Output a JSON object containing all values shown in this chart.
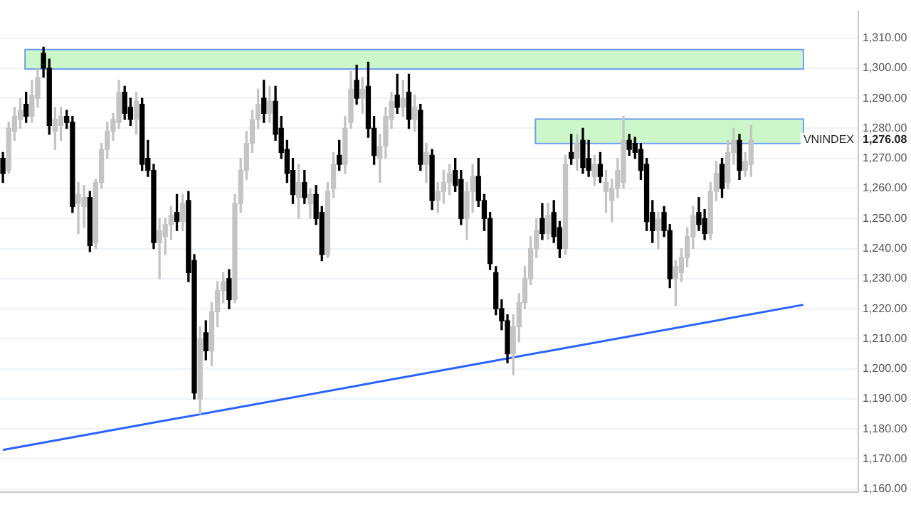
{
  "chart_data": {
    "type": "candlestick",
    "categories": [
      null,
      null,
      null,
      null,
      null,
      null,
      null,
      null,
      null,
      null,
      null,
      null,
      null,
      null,
      null,
      null,
      null,
      null,
      null,
      null,
      null,
      null,
      null,
      null,
      null,
      null,
      null,
      null,
      null,
      null,
      null,
      null,
      null,
      null,
      null,
      null,
      null,
      null,
      null,
      null,
      null,
      null,
      null,
      null,
      null,
      null,
      null,
      null,
      null,
      null,
      null,
      null,
      null,
      null,
      null,
      null,
      null,
      null,
      null,
      null,
      null,
      null,
      null,
      null,
      null,
      null,
      null,
      null,
      null,
      null,
      null,
      null,
      null,
      null,
      null,
      null,
      null,
      null,
      null,
      null,
      null,
      null,
      null,
      null,
      null,
      null,
      null,
      null,
      null,
      null,
      null,
      null,
      null,
      null,
      null,
      null,
      null,
      null,
      null,
      null,
      null,
      null,
      null,
      null,
      null,
      null,
      null,
      null,
      null,
      null,
      null,
      null,
      null,
      null,
      null,
      null,
      null,
      null,
      null,
      null,
      null,
      null,
      null,
      null,
      null,
      null,
      null,
      null,
      null,
      null,
      null,
      null,
      null,
      null,
      null,
      null,
      null,
      null,
      null,
      null,
      null,
      null,
      null,
      null,
      null,
      null,
      null,
      null
    ],
    "ohlc": [
      [
        1270,
        1272,
        1262,
        1265
      ],
      [
        1266,
        1282,
        1265,
        1280
      ],
      [
        1279,
        1287,
        1276,
        1284
      ],
      [
        1283,
        1290,
        1280,
        1286
      ],
      [
        1288,
        1292,
        1282,
        1284
      ],
      [
        1284,
        1296,
        1282,
        1291
      ],
      [
        1290,
        1300,
        1287,
        1297
      ],
      [
        1305,
        1307,
        1297,
        1300
      ],
      [
        1300,
        1303,
        1278,
        1281
      ],
      [
        1279,
        1287,
        1273,
        1283
      ],
      [
        1281,
        1287,
        1276,
        1284
      ],
      [
        1284,
        1286,
        1280,
        1282
      ],
      [
        1282,
        1284,
        1252,
        1254
      ],
      [
        1255,
        1262,
        1245,
        1258
      ],
      [
        1254,
        1261,
        1247,
        1257
      ],
      [
        1257,
        1259,
        1239,
        1241
      ],
      [
        1242,
        1263,
        1240,
        1262
      ],
      [
        1262,
        1275,
        1260,
        1273
      ],
      [
        1273,
        1282,
        1270,
        1279
      ],
      [
        1279,
        1285,
        1276,
        1283
      ],
      [
        1282,
        1296,
        1280,
        1292
      ],
      [
        1292,
        1294,
        1283,
        1285
      ],
      [
        1287,
        1290,
        1281,
        1283
      ],
      [
        1283,
        1292,
        1278,
        1289
      ],
      [
        1288,
        1290,
        1266,
        1268
      ],
      [
        1270,
        1276,
        1264,
        1266
      ],
      [
        1266,
        1268,
        1240,
        1242
      ],
      [
        1242,
        1250,
        1230,
        1246
      ],
      [
        1244,
        1250,
        1238,
        1248
      ],
      [
        1248,
        1254,
        1243,
        1251
      ],
      [
        1252,
        1258,
        1246,
        1249
      ],
      [
        1249,
        1258,
        1246,
        1255
      ],
      [
        1256,
        1259,
        1229,
        1232
      ],
      [
        1236,
        1238,
        1190,
        1192
      ],
      [
        1190,
        1214,
        1185,
        1210
      ],
      [
        1212,
        1216,
        1203,
        1206
      ],
      [
        1206,
        1222,
        1201,
        1219
      ],
      [
        1219,
        1229,
        1214,
        1226
      ],
      [
        1226,
        1232,
        1222,
        1229
      ],
      [
        1230,
        1233,
        1220,
        1223
      ],
      [
        1223,
        1258,
        1222,
        1255
      ],
      [
        1255,
        1270,
        1252,
        1266
      ],
      [
        1266,
        1279,
        1263,
        1275
      ],
      [
        1275,
        1286,
        1272,
        1283
      ],
      [
        1283,
        1293,
        1280,
        1288
      ],
      [
        1290,
        1296,
        1282,
        1285
      ],
      [
        1285,
        1294,
        1282,
        1289
      ],
      [
        1289,
        1294,
        1276,
        1278
      ],
      [
        1280,
        1284,
        1270,
        1272
      ],
      [
        1273,
        1276,
        1262,
        1265
      ],
      [
        1266,
        1270,
        1255,
        1258
      ],
      [
        1257,
        1268,
        1250,
        1262
      ],
      [
        1262,
        1266,
        1255,
        1257
      ],
      [
        1255,
        1260,
        1250,
        1258
      ],
      [
        1258,
        1261,
        1248,
        1250
      ],
      [
        1252,
        1254,
        1236,
        1238
      ],
      [
        1238,
        1262,
        1237,
        1259
      ],
      [
        1260,
        1272,
        1257,
        1268
      ],
      [
        1271,
        1276,
        1266,
        1268
      ],
      [
        1268,
        1284,
        1265,
        1280
      ],
      [
        1282,
        1299,
        1280,
        1293
      ],
      [
        1296,
        1301,
        1288,
        1290
      ],
      [
        1290,
        1297,
        1285,
        1293
      ],
      [
        1294,
        1302,
        1277,
        1280
      ],
      [
        1280,
        1284,
        1268,
        1271
      ],
      [
        1270,
        1278,
        1262,
        1274
      ],
      [
        1274,
        1287,
        1270,
        1284
      ],
      [
        1283,
        1292,
        1280,
        1289
      ],
      [
        1291,
        1298,
        1285,
        1287
      ],
      [
        1287,
        1296,
        1284,
        1290
      ],
      [
        1292,
        1298,
        1280,
        1283
      ],
      [
        1283,
        1291,
        1279,
        1287
      ],
      [
        1286,
        1288,
        1266,
        1268
      ],
      [
        1268,
        1275,
        1262,
        1272
      ],
      [
        1271,
        1273,
        1253,
        1256
      ],
      [
        1256,
        1262,
        1252,
        1259
      ],
      [
        1259,
        1266,
        1255,
        1262
      ],
      [
        1262,
        1268,
        1258,
        1265
      ],
      [
        1266,
        1270,
        1259,
        1261
      ],
      [
        1263,
        1266,
        1248,
        1250
      ],
      [
        1250,
        1262,
        1243,
        1259
      ],
      [
        1259,
        1268,
        1252,
        1264
      ],
      [
        1264,
        1270,
        1254,
        1256
      ],
      [
        1256,
        1258,
        1246,
        1250
      ],
      [
        1250,
        1252,
        1233,
        1235
      ],
      [
        1232,
        1234,
        1218,
        1220
      ],
      [
        1220,
        1223,
        1213,
        1216
      ],
      [
        1216,
        1218,
        1202,
        1205
      ],
      [
        1205,
        1218,
        1198,
        1214
      ],
      [
        1214,
        1225,
        1209,
        1222
      ],
      [
        1222,
        1234,
        1220,
        1230
      ],
      [
        1230,
        1244,
        1228,
        1240
      ],
      [
        1240,
        1250,
        1237,
        1246
      ],
      [
        1250,
        1255,
        1243,
        1245
      ],
      [
        1245,
        1255,
        1243,
        1251
      ],
      [
        1252,
        1256,
        1242,
        1244
      ],
      [
        1247,
        1249,
        1237,
        1240
      ],
      [
        1240,
        1271,
        1238,
        1268
      ],
      [
        1272,
        1278,
        1268,
        1270
      ],
      [
        1270,
        1278,
        1266,
        1275
      ],
      [
        1276,
        1280,
        1265,
        1267
      ],
      [
        1270,
        1276,
        1264,
        1266
      ],
      [
        1264,
        1271,
        1261,
        1268
      ],
      [
        1268,
        1272,
        1262,
        1264
      ],
      [
        1259,
        1266,
        1252,
        1262
      ],
      [
        1256,
        1263,
        1249,
        1260
      ],
      [
        1260,
        1270,
        1257,
        1266
      ],
      [
        1262,
        1284,
        1260,
        1276
      ],
      [
        1276,
        1278,
        1271,
        1273
      ],
      [
        1275,
        1277,
        1270,
        1272
      ],
      [
        1273,
        1275,
        1263,
        1266
      ],
      [
        1268,
        1270,
        1246,
        1249
      ],
      [
        1252,
        1256,
        1242,
        1246
      ],
      [
        1246,
        1252,
        1240,
        1250
      ],
      [
        1252,
        1254,
        1244,
        1246
      ],
      [
        1246,
        1248,
        1227,
        1230
      ],
      [
        1230,
        1236,
        1221,
        1234
      ],
      [
        1232,
        1240,
        1229,
        1237
      ],
      [
        1237,
        1247,
        1234,
        1244
      ],
      [
        1244,
        1254,
        1240,
        1251
      ],
      [
        1252,
        1257,
        1246,
        1248
      ],
      [
        1250,
        1253,
        1243,
        1245
      ],
      [
        1245,
        1262,
        1243,
        1259
      ],
      [
        1259,
        1269,
        1256,
        1265
      ],
      [
        1268,
        1270,
        1257,
        1260
      ],
      [
        1262,
        1276,
        1260,
        1272
      ],
      [
        1272,
        1280,
        1268,
        1276
      ],
      [
        1276,
        1278,
        1263,
        1266
      ],
      [
        1266,
        1272,
        1264,
        1269
      ],
      [
        1268,
        1281,
        1264,
        1276.08
      ],
      null,
      null,
      null,
      null,
      null,
      null,
      null,
      null,
      null,
      null,
      null,
      null,
      null,
      null,
      null,
      null,
      null,
      null
    ],
    "colors": [
      "#000000",
      "#c4c4c4",
      "#c4c4c4",
      "#c4c4c4",
      "#000000",
      "#c4c4c4",
      "#c4c4c4",
      "#000000",
      "#000000",
      "#c4c4c4",
      "#c4c4c4",
      "#000000",
      "#000000",
      "#c4c4c4",
      "#c4c4c4",
      "#000000",
      "#c4c4c4",
      "#c4c4c4",
      "#c4c4c4",
      "#c4c4c4",
      "#c4c4c4",
      "#000000",
      "#000000",
      "#c4c4c4",
      "#000000",
      "#000000",
      "#000000",
      "#c4c4c4",
      "#c4c4c4",
      "#c4c4c4",
      "#000000",
      "#c4c4c4",
      "#000000",
      "#000000",
      "#c4c4c4",
      "#000000",
      "#c4c4c4",
      "#c4c4c4",
      "#c4c4c4",
      "#000000",
      "#c4c4c4",
      "#c4c4c4",
      "#c4c4c4",
      "#c4c4c4",
      "#c4c4c4",
      "#000000",
      "#c4c4c4",
      "#000000",
      "#000000",
      "#000000",
      "#000000",
      "#c4c4c4",
      "#000000",
      "#c4c4c4",
      "#000000",
      "#000000",
      "#c4c4c4",
      "#c4c4c4",
      "#000000",
      "#c4c4c4",
      "#c4c4c4",
      "#000000",
      "#c4c4c4",
      "#000000",
      "#000000",
      "#c4c4c4",
      "#c4c4c4",
      "#c4c4c4",
      "#000000",
      "#c4c4c4",
      "#000000",
      "#c4c4c4",
      "#000000",
      "#c4c4c4",
      "#000000",
      "#c4c4c4",
      "#c4c4c4",
      "#c4c4c4",
      "#000000",
      "#000000",
      "#c4c4c4",
      "#c4c4c4",
      "#000000",
      "#000000",
      "#000000",
      "#000000",
      "#000000",
      "#000000",
      "#c4c4c4",
      "#c4c4c4",
      "#c4c4c4",
      "#c4c4c4",
      "#c4c4c4",
      "#000000",
      "#c4c4c4",
      "#000000",
      "#000000",
      "#c4c4c4",
      "#000000",
      "#c4c4c4",
      "#000000",
      "#000000",
      "#c4c4c4",
      "#000000",
      "#c4c4c4",
      "#c4c4c4",
      "#c4c4c4",
      "#c4c4c4",
      "#000000",
      "#000000",
      "#000000",
      "#000000",
      "#000000",
      "#c4c4c4",
      "#000000",
      "#000000",
      "#c4c4c4",
      "#c4c4c4",
      "#c4c4c4",
      "#c4c4c4",
      "#000000",
      "#000000",
      "#c4c4c4",
      "#c4c4c4",
      "#000000",
      "#c4c4c4",
      "#c4c4c4",
      "#000000",
      "#c4c4c4",
      "#c4c4c4",
      null,
      null,
      null,
      null,
      null,
      null,
      null,
      null,
      null,
      null,
      null,
      null,
      null,
      null,
      null,
      null,
      null,
      null
    ],
    "series": [
      {
        "type": "line",
        "color": "#2962ff",
        "values": [
          1173.0,
          null,
          null,
          null,
          null,
          null,
          null,
          null,
          null,
          null,
          null,
          null,
          null,
          null,
          null,
          null,
          null,
          null,
          null,
          null,
          null,
          null,
          null,
          null,
          null,
          null,
          null,
          null,
          null,
          null,
          null,
          null,
          null,
          null,
          null,
          null,
          null,
          null,
          null,
          null,
          null,
          null,
          null,
          null,
          null,
          null,
          null,
          null,
          null,
          null,
          null,
          null,
          null,
          null,
          null,
          null,
          null,
          null,
          null,
          null,
          null,
          null,
          null,
          null,
          null,
          null,
          null,
          null,
          null,
          null,
          null,
          null,
          null,
          null,
          null,
          null,
          null,
          null,
          null,
          null,
          null,
          null,
          null,
          null,
          null,
          null,
          null,
          null,
          null,
          null,
          null,
          null,
          null,
          null,
          null,
          null,
          null,
          null,
          null,
          null,
          null,
          null,
          null,
          null,
          null,
          null,
          null,
          null,
          null,
          null,
          null,
          null,
          null,
          null,
          null,
          null,
          null,
          null,
          null,
          null,
          null,
          null,
          null,
          null,
          null,
          null,
          null,
          null,
          null,
          null,
          null,
          null,
          null,
          null,
          null,
          null,
          null,
          null,
          1221.3,
          null,
          null,
          null,
          null,
          null,
          null,
          null,
          null,
          null
        ]
      }
    ],
    "bands": [
      {
        "axis": "y",
        "from": 1300,
        "to": 1306.4,
        "color": "#ccf7c9"
      },
      {
        "axis": "y",
        "from": 1275.2,
        "to": 1283.3,
        "color": "#ccf7c9"
      }
    ],
    "annotations": [
      "VNINDEX",
      "1,276.08"
    ],
    "ylim": [
      1159,
      1319
    ],
    "yticks": [
      {
        "value": 1160,
        "label": "1,160.00"
      },
      {
        "value": 1170,
        "label": "1,170.00"
      },
      {
        "value": 1180,
        "label": "1,180.00"
      },
      {
        "value": 1190,
        "label": "1,190.00"
      },
      {
        "value": 1200,
        "label": "1,200.00"
      },
      {
        "value": 1210,
        "label": "1,210.00"
      },
      {
        "value": 1220,
        "label": "1,220.00"
      },
      {
        "value": 1230,
        "label": "1,230.00"
      },
      {
        "value": 1240,
        "label": "1,240.00"
      },
      {
        "value": 1250,
        "label": "1,250.00"
      },
      {
        "value": 1260,
        "label": "1,260.00"
      },
      {
        "value": 1270,
        "label": "1,270.00"
      },
      {
        "value": 1280,
        "label": "1,280.00"
      },
      {
        "value": 1290,
        "label": "1,290.00"
      },
      {
        "value": 1300,
        "label": "1,300.00"
      },
      {
        "value": 1310,
        "label": "1,310.00"
      }
    ],
    "grid": "y",
    "tick_labels": "y",
    "legend": false
  }
}
